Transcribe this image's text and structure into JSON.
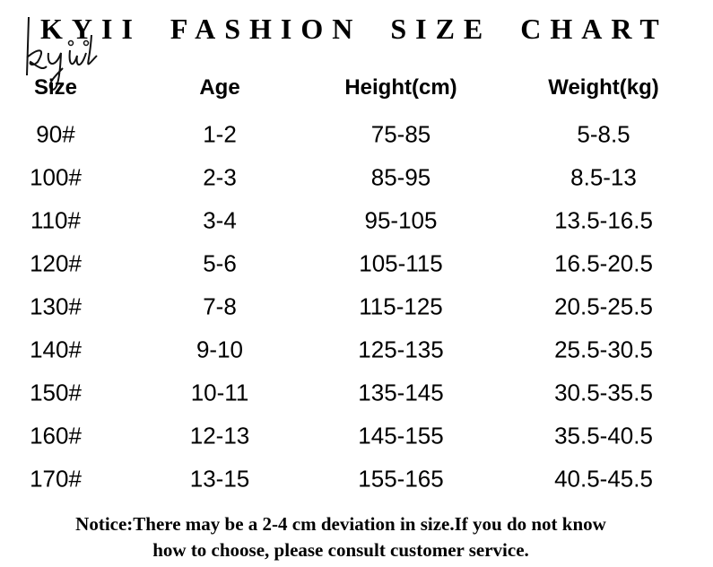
{
  "title": "KYII FASHION SIZE CHART",
  "logo_text": "kyii",
  "headers": [
    "Size",
    "Age",
    "Height(cm)",
    "Weight(kg)"
  ],
  "rows": [
    [
      "90#",
      "1-2",
      "75-85",
      "5-8.5"
    ],
    [
      "100#",
      "2-3",
      "85-95",
      "8.5-13"
    ],
    [
      "110#",
      "3-4",
      "95-105",
      "13.5-16.5"
    ],
    [
      "120#",
      "5-6",
      "105-115",
      "16.5-20.5"
    ],
    [
      "130#",
      "7-8",
      "115-125",
      "20.5-25.5"
    ],
    [
      "140#",
      "9-10",
      "125-135",
      "25.5-30.5"
    ],
    [
      "150#",
      "10-11",
      "135-145",
      "30.5-35.5"
    ],
    [
      "160#",
      "12-13",
      "145-155",
      "35.5-40.5"
    ],
    [
      "170#",
      "13-15",
      "155-165",
      "40.5-45.5"
    ]
  ],
  "notice": {
    "line1": "Notice:There may be a 2-4 cm deviation in size.If you do not know",
    "line2": "how to choose, please consult customer service."
  }
}
